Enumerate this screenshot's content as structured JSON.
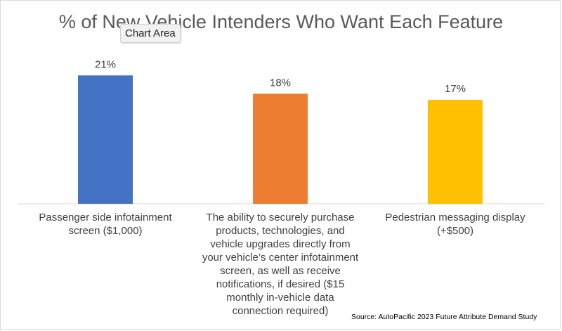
{
  "tooltip": "Chart Area",
  "source": "Source: AutoPacific 2023 Future Attribute Demand Study",
  "chart_data": {
    "type": "bar",
    "title": "% of New Vehicle Intenders Who Want Each Feature",
    "categories": [
      [
        "Passenger side infotainment",
        "screen ($1,000)"
      ],
      [
        "The ability to securely purchase",
        "products, technologies, and",
        "vehicle upgrades directly from",
        "your vehicle’s center infotainment",
        "screen, as well as receive",
        "notifications, if desired ($15",
        "monthly in-vehicle data",
        "connection required)"
      ],
      [
        "Pedestrian messaging display",
        "(+$500)"
      ]
    ],
    "values": [
      21,
      18,
      17
    ],
    "data_labels": [
      "21%",
      "18%",
      "17%"
    ],
    "colors": [
      "#4472C4",
      "#ED7D31",
      "#FFC000"
    ],
    "ylim": [
      0,
      25
    ],
    "xlabel": "",
    "ylabel": "",
    "grid": false,
    "legend": "none"
  }
}
